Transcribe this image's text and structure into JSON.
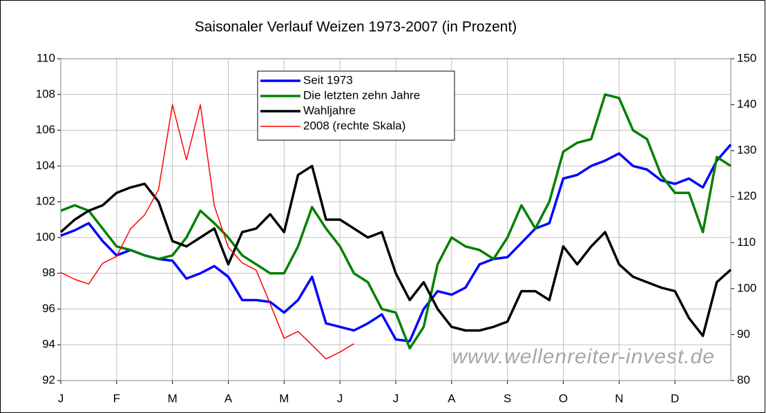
{
  "chart_data": {
    "type": "line",
    "title": "Saisonaler Verlauf Weizen 1973-2007 (in Prozent)",
    "watermark": "www.wellenreiter-invest.de",
    "categories": [
      "J",
      null,
      null,
      null,
      "F",
      null,
      null,
      null,
      "M",
      null,
      null,
      null,
      "A",
      null,
      null,
      null,
      "M",
      null,
      null,
      null,
      "J",
      null,
      null,
      null,
      "J",
      null,
      null,
      null,
      "A",
      null,
      null,
      null,
      "S",
      null,
      null,
      null,
      "O",
      null,
      null,
      null,
      "N",
      null,
      null,
      null,
      "D",
      null,
      null,
      null,
      null
    ],
    "ylim": [
      92,
      110
    ],
    "yticks": [
      92,
      94,
      96,
      98,
      100,
      102,
      104,
      106,
      108,
      110
    ],
    "y2lim": [
      80,
      150
    ],
    "y2ticks": [
      80,
      90,
      100,
      110,
      120,
      130,
      140,
      150
    ],
    "grid": true,
    "legend": "top",
    "series": [
      {
        "name": "Seit 1973",
        "color": "#0000ff",
        "width": 3.5,
        "values": [
          100.1,
          100.4,
          100.8,
          99.8,
          99.0,
          99.3,
          99.0,
          98.8,
          98.7,
          97.7,
          98.0,
          98.4,
          97.8,
          96.5,
          96.5,
          96.4,
          95.8,
          96.5,
          97.8,
          95.2,
          95.0,
          94.8,
          95.2,
          95.7,
          94.3,
          94.2,
          96.0,
          97.0,
          96.8,
          97.2,
          98.5,
          98.8,
          98.9,
          99.7,
          100.5,
          100.8,
          103.3,
          103.5,
          104.0,
          104.3,
          104.7,
          104.0,
          103.8,
          103.2,
          103.0,
          103.3,
          102.8,
          104.3,
          105.2
        ]
      },
      {
        "name": "Die letzten zehn Jahre",
        "color": "#008000",
        "width": 3.5,
        "values": [
          101.5,
          101.8,
          101.5,
          100.5,
          99.5,
          99.3,
          99.0,
          98.8,
          99.0,
          100.0,
          101.5,
          100.8,
          100.0,
          99.0,
          98.5,
          98.0,
          98.0,
          99.5,
          101.7,
          100.5,
          99.5,
          98.0,
          97.5,
          96.0,
          95.8,
          93.8,
          95.0,
          98.5,
          100.0,
          99.5,
          99.3,
          98.8,
          100.0,
          101.8,
          100.5,
          102.0,
          104.8,
          105.3,
          105.5,
          108.0,
          107.8,
          106.0,
          105.5,
          103.5,
          102.5,
          102.5,
          100.3,
          104.5,
          104.0
        ]
      },
      {
        "name": "Wahljahre",
        "color": "#000000",
        "width": 3.5,
        "values": [
          100.3,
          101.0,
          101.5,
          101.8,
          102.5,
          102.8,
          103.0,
          102.0,
          99.8,
          99.5,
          100.0,
          100.5,
          98.5,
          100.3,
          100.5,
          101.3,
          100.3,
          103.5,
          104.0,
          101.0,
          101.0,
          100.5,
          100.0,
          100.3,
          98.0,
          96.5,
          97.5,
          96.0,
          95.0,
          94.8,
          94.8,
          95.0,
          95.3,
          97.0,
          97.0,
          96.5,
          99.5,
          98.5,
          99.5,
          100.3,
          98.5,
          97.8,
          97.5,
          97.2,
          97.0,
          95.5,
          94.5,
          97.5,
          98.2
        ]
      },
      {
        "name": "2008 (rechte Skala)",
        "color": "#ff0000",
        "width": 1.5,
        "axis": "y2",
        "values": [
          103.5,
          102.0,
          101.0,
          105.5,
          107.0,
          113.0,
          116.0,
          121.5,
          140.0,
          128.0,
          140.0,
          118.0,
          109.0,
          105.6,
          104.0,
          96.7,
          89.2,
          90.7,
          87.7,
          84.7,
          86.2,
          88.0,
          null,
          null,
          null,
          null,
          null,
          null,
          null,
          null,
          null,
          null,
          null,
          null,
          null,
          null,
          null,
          null,
          null,
          null,
          null,
          null,
          null,
          null,
          null,
          null,
          null,
          null,
          null
        ]
      }
    ]
  }
}
